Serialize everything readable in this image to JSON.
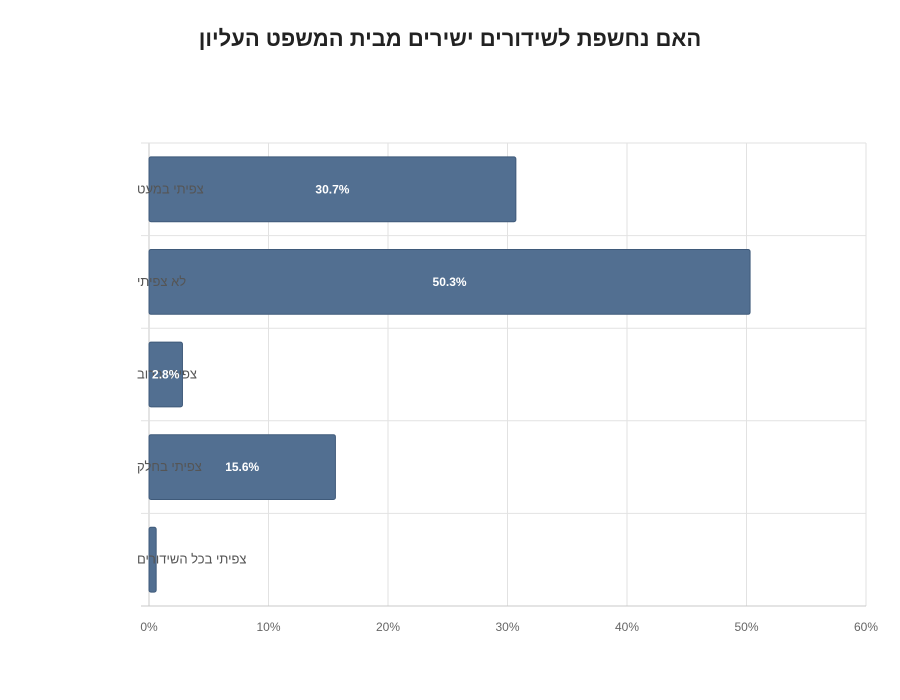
{
  "chart_data": {
    "type": "bar",
    "orientation": "horizontal",
    "title": "האם נחשפת לשידורים ישירים מבית המשפט העליון",
    "categories": [
      "צפיתי במעט",
      "לא צפיתי",
      "צפיתי ברוב",
      "צפיתי בחלק",
      "צפיתי בכל השידורים"
    ],
    "values": [
      30.7,
      50.3,
      2.8,
      15.6,
      0.6
    ],
    "data_labels": [
      "30.7%",
      "50.3%",
      "2.8%",
      "15.6%",
      ""
    ],
    "xlim": [
      0,
      60
    ],
    "x_ticks": [
      0,
      10,
      20,
      30,
      40,
      50,
      60
    ],
    "x_tick_labels": [
      "0%",
      "10%",
      "20%",
      "30%",
      "40%",
      "50%",
      "60%"
    ],
    "xlabel": "",
    "ylabel": "",
    "grid": true,
    "bar_color": "#526f91",
    "grid_color": "#e2e2e2"
  }
}
